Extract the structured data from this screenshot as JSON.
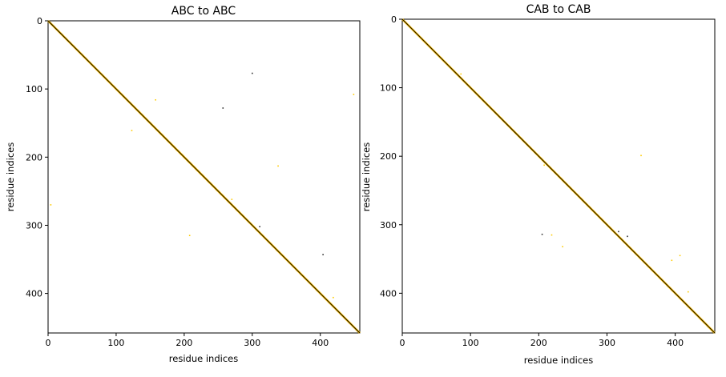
{
  "chart_data": [
    {
      "type": "heatmap",
      "title": "ABC to ABC",
      "xlabel": "residue indices",
      "ylabel": "residue indices",
      "xlim": [
        0,
        458
      ],
      "ylim": [
        458,
        0
      ],
      "xticks": [
        0,
        100,
        200,
        300,
        400
      ],
      "yticks": [
        0,
        100,
        200,
        300,
        400
      ],
      "grid": false,
      "colors": {
        "diagonal": "#000000",
        "near_diagonal": "#f5b800",
        "contact": "#ffcc00",
        "dark_contact": "#333333"
      },
      "contacts": [
        {
          "x": 300,
          "y": 77,
          "color": "dark"
        },
        {
          "x": 257,
          "y": 128,
          "color": "dark"
        },
        {
          "x": 158,
          "y": 116,
          "color": "yellow"
        },
        {
          "x": 123,
          "y": 161,
          "color": "yellow"
        },
        {
          "x": 338,
          "y": 213,
          "color": "yellow"
        },
        {
          "x": 4,
          "y": 270,
          "color": "yellow"
        },
        {
          "x": 208,
          "y": 315,
          "color": "yellow"
        },
        {
          "x": 311,
          "y": 302,
          "color": "dark"
        },
        {
          "x": 404,
          "y": 343,
          "color": "dark"
        },
        {
          "x": 419,
          "y": 406,
          "color": "yellow"
        },
        {
          "x": 449,
          "y": 108,
          "color": "yellow"
        },
        {
          "x": 270,
          "y": 262,
          "color": "yellow"
        }
      ]
    },
    {
      "type": "heatmap",
      "title": "CAB to CAB",
      "xlabel": "residue indices",
      "ylabel": "residue indices",
      "xlim": [
        0,
        458
      ],
      "ylim": [
        458,
        0
      ],
      "xticks": [
        0,
        100,
        200,
        300,
        400
      ],
      "yticks": [
        0,
        100,
        200,
        300,
        400
      ],
      "grid": false,
      "colors": {
        "diagonal": "#000000",
        "near_diagonal": "#f5b800",
        "contact": "#ffcc00",
        "dark_contact": "#333333"
      },
      "contacts": [
        {
          "x": 350,
          "y": 199,
          "color": "yellow"
        },
        {
          "x": 208,
          "y": 213,
          "color": "yellow"
        },
        {
          "x": 205,
          "y": 314,
          "color": "dark"
        },
        {
          "x": 219,
          "y": 315,
          "color": "yellow"
        },
        {
          "x": 235,
          "y": 332,
          "color": "yellow"
        },
        {
          "x": 330,
          "y": 317,
          "color": "dark"
        },
        {
          "x": 395,
          "y": 352,
          "color": "yellow"
        },
        {
          "x": 407,
          "y": 345,
          "color": "yellow"
        },
        {
          "x": 419,
          "y": 398,
          "color": "yellow"
        },
        {
          "x": 86,
          "y": 80,
          "color": "yellow"
        },
        {
          "x": 317,
          "y": 310,
          "color": "dark"
        }
      ]
    }
  ]
}
